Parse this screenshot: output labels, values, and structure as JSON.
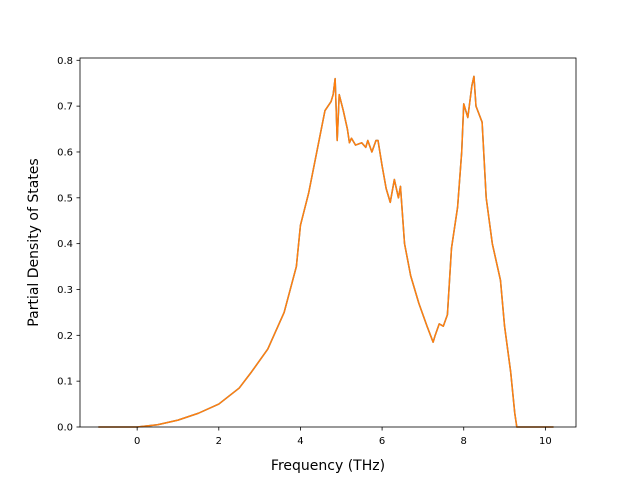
{
  "chart_data": {
    "type": "line",
    "title": "",
    "xlabel": "Frequency (THz)",
    "ylabel": "Partial Density of States",
    "xlim": [
      -1.4,
      10.75
    ],
    "ylim": [
      0.0,
      0.805
    ],
    "grid": false,
    "legend": "none",
    "xticks": [
      {
        "value": 0,
        "label": "0"
      },
      {
        "value": 2,
        "label": "2"
      },
      {
        "value": 4,
        "label": "4"
      },
      {
        "value": 6,
        "label": "6"
      },
      {
        "value": 8,
        "label": "8"
      },
      {
        "value": 10,
        "label": "10"
      }
    ],
    "yticks": [
      {
        "value": 0.0,
        "label": "0.0"
      },
      {
        "value": 0.1,
        "label": "0.1"
      },
      {
        "value": 0.2,
        "label": "0.2"
      },
      {
        "value": 0.3,
        "label": "0.3"
      },
      {
        "value": 0.4,
        "label": "0.4"
      },
      {
        "value": 0.5,
        "label": "0.5"
      },
      {
        "value": 0.6,
        "label": "0.6"
      },
      {
        "value": 0.7,
        "label": "0.7"
      },
      {
        "value": 0.8,
        "label": "0.8"
      }
    ],
    "series": [
      {
        "color": "#1f77b4",
        "x": [
          -0.95,
          0,
          0.5,
          1,
          1.5,
          2,
          2.5,
          2.8,
          3.2,
          3.6,
          3.9,
          4,
          4.2,
          4.4,
          4.6,
          4.75,
          4.8,
          4.85,
          4.9,
          4.95,
          5.05,
          5.15,
          5.2,
          5.25,
          5.35,
          5.5,
          5.6,
          5.65,
          5.75,
          5.85,
          5.9,
          6.0,
          6.1,
          6.2,
          6.3,
          6.4,
          6.45,
          6.55,
          6.7,
          6.9,
          7.1,
          7.25,
          7.3,
          7.4,
          7.5,
          7.6,
          7.7,
          7.85,
          7.95,
          8.0,
          8.1,
          8.2,
          8.25,
          8.3,
          8.45,
          8.55,
          8.7,
          8.9,
          9.0,
          9.15,
          9.25,
          9.3,
          10.2
        ],
        "y": [
          0,
          0,
          0.005,
          0.015,
          0.03,
          0.05,
          0.085,
          0.12,
          0.17,
          0.25,
          0.35,
          0.44,
          0.51,
          0.6,
          0.69,
          0.71,
          0.725,
          0.76,
          0.625,
          0.725,
          0.69,
          0.65,
          0.62,
          0.63,
          0.615,
          0.62,
          0.61,
          0.625,
          0.6,
          0.625,
          0.625,
          0.57,
          0.52,
          0.49,
          0.54,
          0.5,
          0.525,
          0.4,
          0.33,
          0.27,
          0.22,
          0.185,
          0.2,
          0.225,
          0.22,
          0.245,
          0.39,
          0.48,
          0.6,
          0.705,
          0.675,
          0.745,
          0.765,
          0.7,
          0.665,
          0.5,
          0.4,
          0.32,
          0.22,
          0.12,
          0.03,
          0,
          0
        ]
      },
      {
        "color": "#ff7f0e",
        "x": [
          -0.95,
          0,
          0.5,
          1,
          1.5,
          2,
          2.5,
          2.8,
          3.2,
          3.6,
          3.9,
          4,
          4.2,
          4.4,
          4.6,
          4.75,
          4.8,
          4.85,
          4.9,
          4.95,
          5.05,
          5.15,
          5.2,
          5.25,
          5.35,
          5.5,
          5.6,
          5.65,
          5.75,
          5.85,
          5.9,
          6.0,
          6.1,
          6.2,
          6.3,
          6.4,
          6.45,
          6.55,
          6.7,
          6.9,
          7.1,
          7.25,
          7.3,
          7.4,
          7.5,
          7.6,
          7.7,
          7.85,
          7.95,
          8.0,
          8.1,
          8.2,
          8.25,
          8.3,
          8.45,
          8.55,
          8.7,
          8.9,
          9.0,
          9.15,
          9.25,
          9.3,
          10.2
        ],
        "y": [
          0,
          0,
          0.005,
          0.015,
          0.03,
          0.05,
          0.085,
          0.12,
          0.17,
          0.25,
          0.35,
          0.44,
          0.51,
          0.6,
          0.69,
          0.71,
          0.725,
          0.76,
          0.625,
          0.725,
          0.69,
          0.65,
          0.62,
          0.63,
          0.615,
          0.62,
          0.61,
          0.625,
          0.6,
          0.625,
          0.625,
          0.57,
          0.52,
          0.49,
          0.54,
          0.5,
          0.525,
          0.4,
          0.33,
          0.27,
          0.22,
          0.185,
          0.2,
          0.225,
          0.22,
          0.245,
          0.39,
          0.48,
          0.6,
          0.705,
          0.675,
          0.745,
          0.765,
          0.7,
          0.665,
          0.5,
          0.4,
          0.32,
          0.22,
          0.12,
          0.03,
          0,
          0
        ]
      }
    ]
  }
}
